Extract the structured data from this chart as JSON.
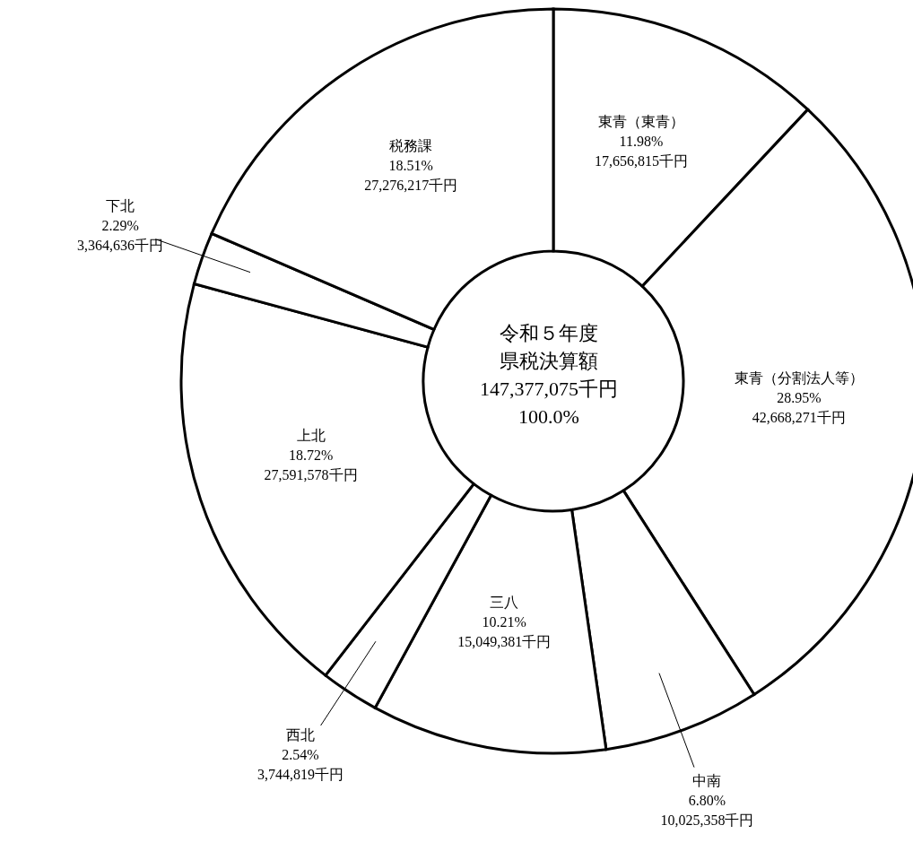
{
  "chart_data": {
    "type": "donut",
    "title": "令和５年度",
    "subtitle": "県税決算額",
    "annotations": [
      "147,377,075千円",
      "100.0%"
    ],
    "categories": [
      "東青（東青）",
      "東青（分割法人等）",
      "中南",
      "三八",
      "西北",
      "上北",
      "下北",
      "税務課"
    ],
    "values": [
      17656815,
      42668271,
      10025358,
      15049381,
      3744819,
      27591578,
      3364636,
      27276217
    ],
    "value_labels": [
      "11.98%\n17,656,815千円",
      "28.95%\n42,668,271千円",
      "6.80%\n10,025,358千円",
      "10.21%\n15,049,381千円",
      "2.54%\n3,744,819千円",
      "18.72%\n27,591,578千円",
      "2.29%\n3,364,636千円",
      "18.51%\n27,276,217千円"
    ],
    "colors": [
      "#ffffff",
      "#ffffff",
      "#ffffff",
      "#ffffff",
      "#ffffff",
      "#ffffff",
      "#ffffff",
      "#ffffff"
    ]
  }
}
